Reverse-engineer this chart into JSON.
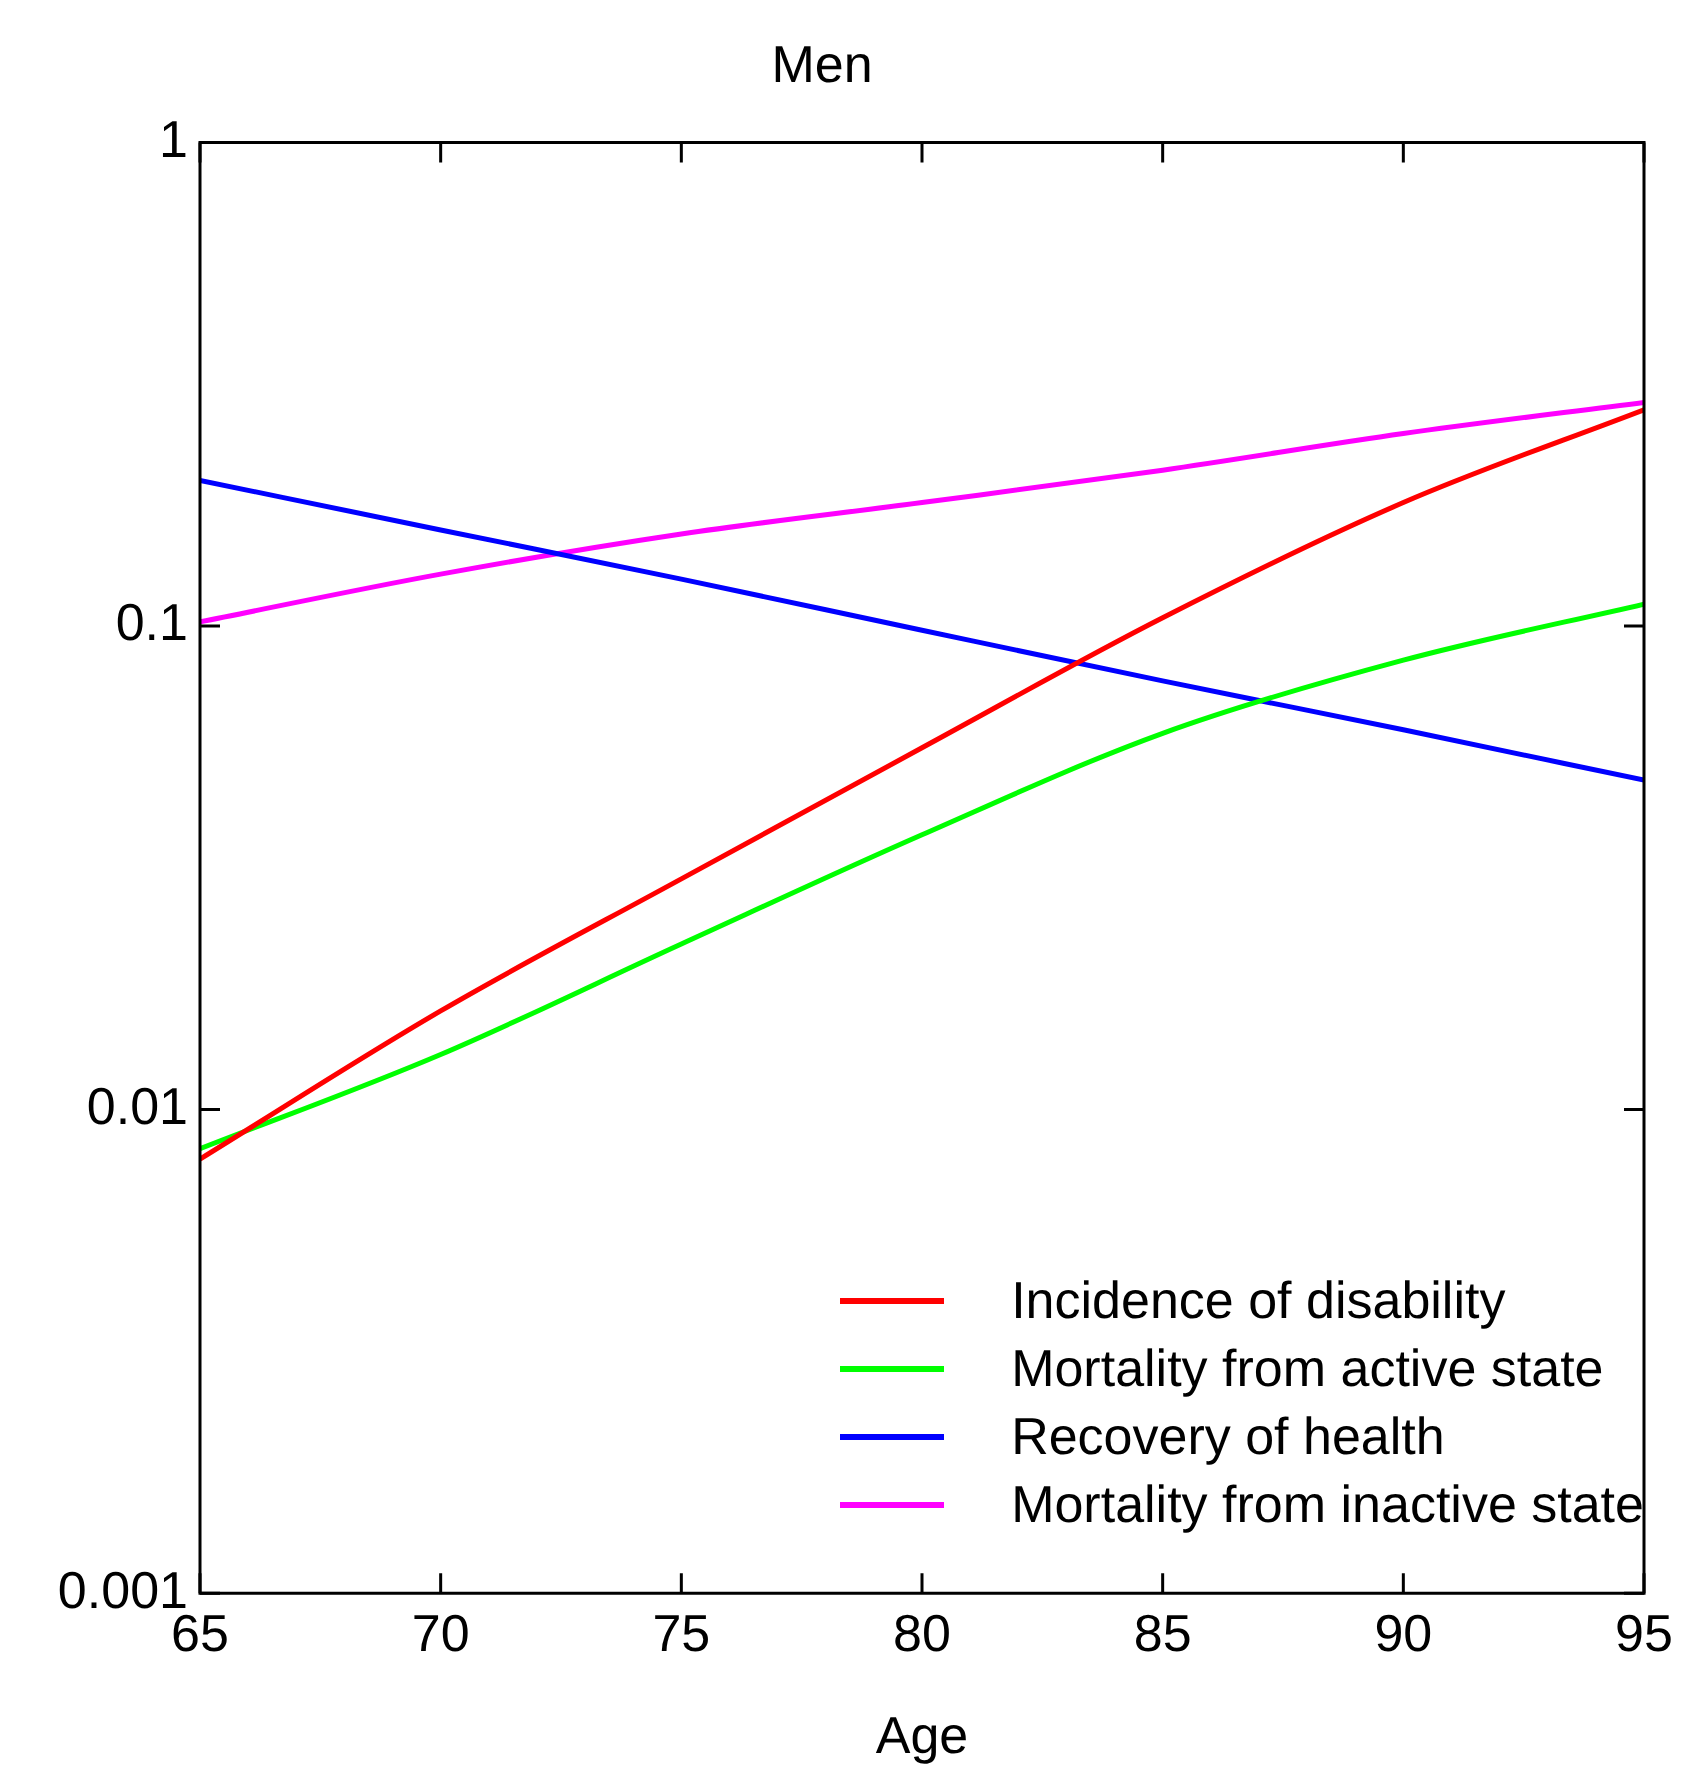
{
  "chart_data": {
    "type": "line",
    "title": "Men",
    "xlabel": "Age",
    "log": "y",
    "legend": "bottom right",
    "x": [
      65,
      70,
      75,
      80,
      85,
      90,
      95
    ],
    "xlim": [
      65,
      95
    ],
    "xticks": [
      65,
      70,
      75,
      80,
      85,
      90,
      95
    ],
    "ylim": [
      0.001,
      1
    ],
    "yticks": [
      0.001,
      0.01,
      0.1,
      1
    ],
    "series": [
      {
        "name": "Incidence of disability",
        "color": "#ff0000",
        "values": [
          0.0079,
          0.016,
          0.03,
          0.056,
          0.104,
          0.18,
          0.28
        ]
      },
      {
        "name": "Mortality from active state",
        "color": "#00ff00",
        "values": [
          0.0083,
          0.013,
          0.022,
          0.037,
          0.06,
          0.085,
          0.111
        ]
      },
      {
        "name": "Recovery of health",
        "color": "#0000ff",
        "values": [
          0.2,
          0.158,
          0.125,
          0.098,
          0.077,
          0.061,
          0.048
        ]
      },
      {
        "name": "Mortality from inactive state",
        "color": "#ff00ff",
        "values": [
          0.102,
          0.128,
          0.155,
          0.18,
          0.21,
          0.25,
          0.29
        ]
      }
    ]
  }
}
